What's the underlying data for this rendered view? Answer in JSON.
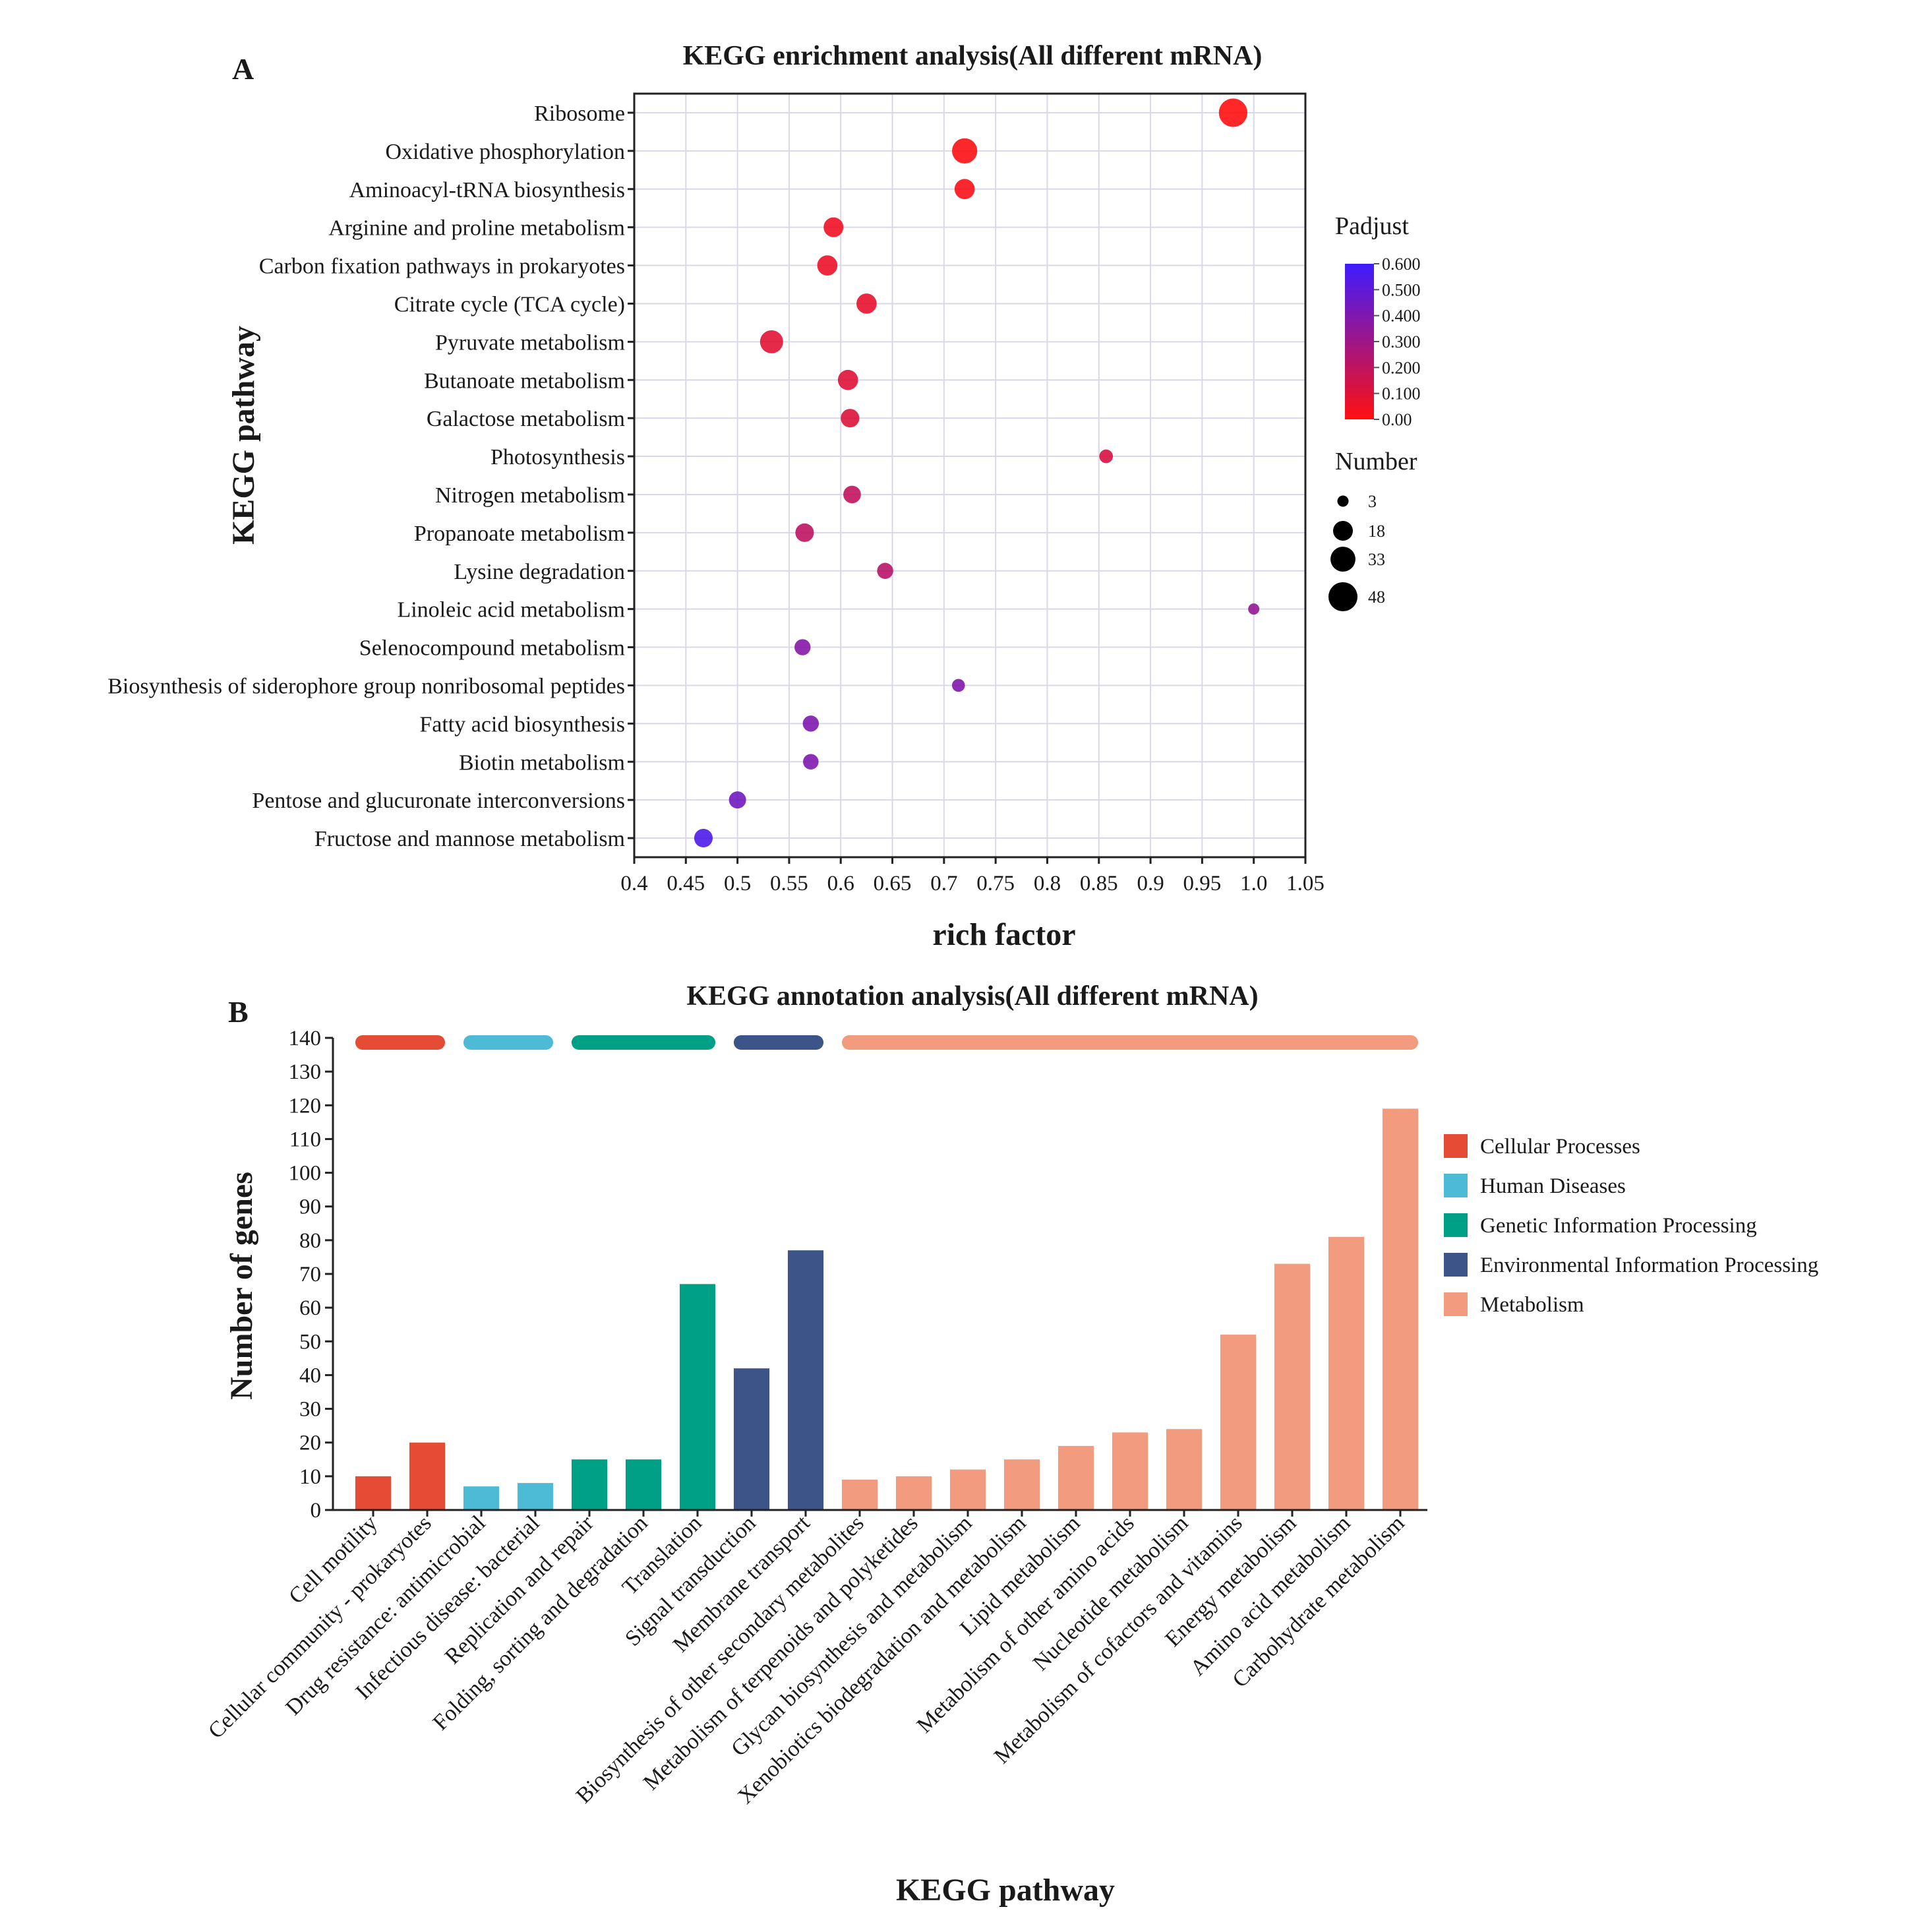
{
  "panel_a_letter": "A",
  "panel_b_letter": "B",
  "chart_data": [
    {
      "type": "scatter",
      "title": "KEGG enrichment analysis(All different mRNA)",
      "xlabel": "rich factor",
      "ylabel": "KEGG pathway",
      "xlim": [
        0.4,
        1.05
      ],
      "xticks": [
        "0.4",
        "0.45",
        "0.5",
        "0.55",
        "0.6",
        "0.65",
        "0.7",
        "0.75",
        "0.8",
        "0.85",
        "0.9",
        "0.95",
        "1.0",
        "1.05"
      ],
      "points": [
        {
          "pathway": "Ribosome",
          "rich_factor": 0.98,
          "padjust": 0.0,
          "number": 46
        },
        {
          "pathway": "Oxidative phosphorylation",
          "rich_factor": 0.72,
          "padjust": 0.01,
          "number": 34
        },
        {
          "pathway": "Aminoacyl-tRNA biosynthesis",
          "rich_factor": 0.72,
          "padjust": 0.02,
          "number": 19
        },
        {
          "pathway": "Arginine and proline metabolism",
          "rich_factor": 0.593,
          "padjust": 0.05,
          "number": 18
        },
        {
          "pathway": "Carbon fixation pathways in prokaryotes",
          "rich_factor": 0.587,
          "padjust": 0.06,
          "number": 19
        },
        {
          "pathway": "Citrate cycle (TCA cycle)",
          "rich_factor": 0.625,
          "padjust": 0.07,
          "number": 19
        },
        {
          "pathway": "Pyruvate metabolism",
          "rich_factor": 0.533,
          "padjust": 0.09,
          "number": 27
        },
        {
          "pathway": "Butanoate metabolism",
          "rich_factor": 0.607,
          "padjust": 0.1,
          "number": 19
        },
        {
          "pathway": "Galactose metabolism",
          "rich_factor": 0.609,
          "padjust": 0.11,
          "number": 15
        },
        {
          "pathway": "Photosynthesis",
          "rich_factor": 0.857,
          "padjust": 0.12,
          "number": 6
        },
        {
          "pathway": "Nitrogen metabolism",
          "rich_factor": 0.611,
          "padjust": 0.19,
          "number": 13
        },
        {
          "pathway": "Propanoate metabolism",
          "rich_factor": 0.565,
          "padjust": 0.2,
          "number": 15
        },
        {
          "pathway": "Lysine degradation",
          "rich_factor": 0.643,
          "padjust": 0.22,
          "number": 10
        },
        {
          "pathway": "Linoleic acid metabolism",
          "rich_factor": 1.0,
          "padjust": 0.33,
          "number": 3
        },
        {
          "pathway": "Selenocompound metabolism",
          "rich_factor": 0.563,
          "padjust": 0.38,
          "number": 10
        },
        {
          "pathway": "Biosynthesis of siderophore group nonribosomal peptides",
          "rich_factor": 0.714,
          "padjust": 0.39,
          "number": 5
        },
        {
          "pathway": "Fatty acid biosynthesis",
          "rich_factor": 0.571,
          "padjust": 0.4,
          "number": 10
        },
        {
          "pathway": "Biotin metabolism",
          "rich_factor": 0.571,
          "padjust": 0.4,
          "number": 9
        },
        {
          "pathway": "Pentose and glucuronate interconversions",
          "rich_factor": 0.5,
          "padjust": 0.44,
          "number": 12
        },
        {
          "pathway": "Fructose and mannose metabolism",
          "rich_factor": 0.467,
          "padjust": 0.55,
          "number": 15
        }
      ],
      "color_legend": {
        "title": "Padjust",
        "range": [
          0.0,
          0.6
        ],
        "low_color": "#ff1010",
        "high_color": "#3e1cff",
        "labels": [
          "0.600",
          "0.500",
          "0.400",
          "0.300",
          "0.200",
          "0.100",
          "0.00"
        ]
      },
      "size_legend": {
        "title": "Number",
        "values": [
          3,
          18,
          33,
          48
        ],
        "labels": [
          "3",
          "18",
          "33",
          "48"
        ]
      }
    },
    {
      "type": "bar",
      "title": "KEGG annotation analysis(All different mRNA)",
      "xlabel": "KEGG pathway",
      "ylabel": "Number of genes",
      "ylim": [
        0,
        140
      ],
      "yticks": [
        "0",
        "10",
        "20",
        "30",
        "40",
        "50",
        "60",
        "70",
        "80",
        "90",
        "100",
        "110",
        "120",
        "130",
        "140"
      ],
      "categories": [
        "Cell motility",
        "Cellular community - prokaryotes",
        "Drug resistance: antimicrobial",
        "Infectious disease: bacterial",
        "Replication and repair",
        "Folding, sorting and degradation",
        "Translation",
        "Signal transduction",
        "Membrane transport",
        "Biosynthesis of other secondary metabolites",
        "Metabolism of terpenoids and polyketides",
        "Glycan biosynthesis and metabolism",
        "Xenobiotics biodegradation and metabolism",
        "Lipid metabolism",
        "Metabolism of other amino acids",
        "Nucleotide metabolism",
        "Metabolism of cofactors and vitamins",
        "Energy metabolism",
        "Amino acid metabolism",
        "Carbohydrate metabolism"
      ],
      "values": [
        10,
        20,
        7,
        8,
        15,
        15,
        67,
        42,
        77,
        9,
        10,
        12,
        15,
        19,
        23,
        24,
        52,
        73,
        81,
        119
      ],
      "groups": [
        0,
        0,
        1,
        1,
        2,
        2,
        2,
        3,
        3,
        4,
        4,
        4,
        4,
        4,
        4,
        4,
        4,
        4,
        4,
        4
      ],
      "legend": [
        {
          "name": "Cellular Processes",
          "color": "#e64b35"
        },
        {
          "name": "Human Diseases",
          "color": "#4dbbd5"
        },
        {
          "name": "Genetic Information Processing",
          "color": "#00a087"
        },
        {
          "name": "Environmental Information Processing",
          "color": "#3c5488"
        },
        {
          "name": "Metabolism",
          "color": "#f39b7f"
        }
      ]
    }
  ]
}
